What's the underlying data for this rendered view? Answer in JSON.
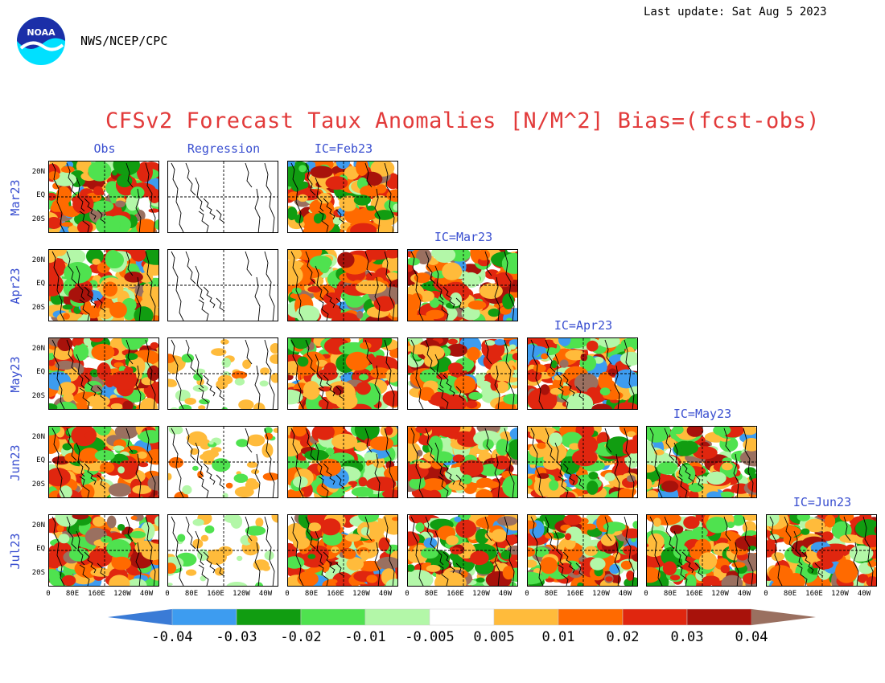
{
  "header": {
    "last_update": "Last update: Sat Aug 5 2023",
    "agency": "NWS/NCEP/CPC",
    "logo_text": "NOAA"
  },
  "title": "CFSv2 Forecast Taux Anomalies [N/M^2] Bias=(fcst-obs)",
  "columns": {
    "obs": "Obs",
    "regression": "Regression",
    "ic": [
      "IC=Feb23",
      "IC=Mar23",
      "IC=Apr23",
      "IC=May23",
      "IC=Jun23"
    ]
  },
  "rows": [
    "Mar23",
    "Apr23",
    "May23",
    "Jun23",
    "Jul23"
  ],
  "lat_labels": [
    "20N",
    "EQ",
    "20S"
  ],
  "lon_labels": [
    "0",
    "80E",
    "160E",
    "120W",
    "40W"
  ],
  "colorbar": {
    "ticks": [
      "-0.04",
      "-0.03",
      "-0.02",
      "-0.01",
      "-0.005",
      "0.005",
      "0.01",
      "0.02",
      "0.03",
      "0.04"
    ],
    "colors": [
      "#3a7bd6",
      "#3d9cf0",
      "#119d11",
      "#4fe24f",
      "#b3f7a8",
      "#ffffff",
      "#ffbb3b",
      "#ff6a00",
      "#e0260f",
      "#a8120b",
      "#9a7060"
    ]
  }
}
